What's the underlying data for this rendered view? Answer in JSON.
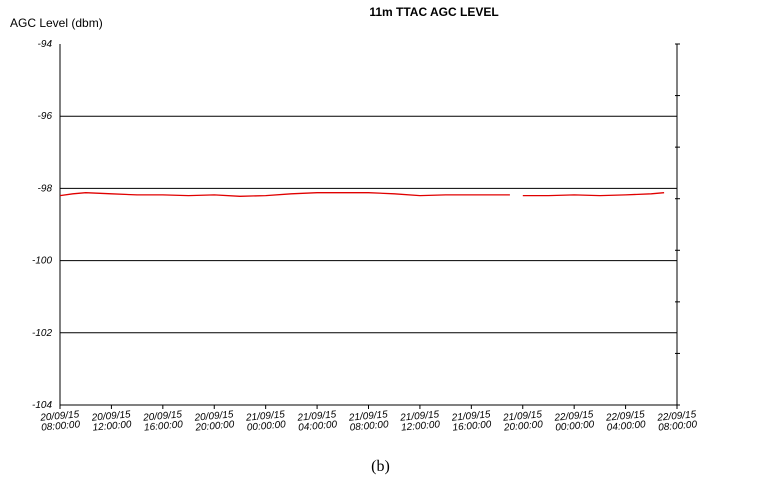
{
  "chart_data": {
    "type": "line",
    "title": "11m TTAC AGC LEVEL",
    "ylabel": "AGC Level (dbm)",
    "xlabel": "",
    "ylim": [
      -104,
      -94
    ],
    "yticks": [
      -94,
      -96,
      -98,
      -100,
      -102,
      -104
    ],
    "grid": "horizontal",
    "x_ticks": [
      "20/09/15 08:00:00",
      "20/09/15 12:00:00",
      "20/09/15 16:00:00",
      "20/09/15 20:00:00",
      "21/09/15 00:00:00",
      "21/09/15 04:00:00",
      "21/09/15 08:00:00",
      "21/09/15 12:00:00",
      "21/09/15 16:00:00",
      "21/09/15 20:00:00",
      "22/09/15 00:00:00",
      "22/09/15 04:00:00",
      "22/09/15 08:00:00"
    ],
    "series": [
      {
        "color": "#e00000",
        "segments": [
          {
            "x": [
              "20/09/15 08:00",
              "20/09/15 09:00",
              "20/09/15 10:00",
              "20/09/15 12:00",
              "20/09/15 14:00",
              "20/09/15 16:00",
              "20/09/15 18:00",
              "20/09/15 20:00",
              "20/09/15 22:00",
              "21/09/15 00:00",
              "21/09/15 02:00",
              "21/09/15 04:00",
              "21/09/15 06:00",
              "21/09/15 08:00",
              "21/09/15 10:00",
              "21/09/15 12:00",
              "21/09/15 14:00",
              "21/09/15 16:00",
              "21/09/15 18:00",
              "21/09/15 19:00"
            ],
            "y": [
              -98.2,
              -98.15,
              -98.12,
              -98.15,
              -98.18,
              -98.18,
              -98.2,
              -98.18,
              -98.22,
              -98.2,
              -98.15,
              -98.12,
              -98.12,
              -98.12,
              -98.15,
              -98.2,
              -98.18,
              -98.18,
              -98.18,
              -98.18
            ]
          },
          {
            "x": [
              "21/09/15 20:00",
              "21/09/15 22:00",
              "22/09/15 00:00",
              "22/09/15 02:00",
              "22/09/15 04:00",
              "22/09/15 06:00",
              "22/09/15 07:00"
            ],
            "y": [
              -98.2,
              -98.2,
              -98.18,
              -98.2,
              -98.18,
              -98.15,
              -98.12
            ]
          }
        ]
      }
    ]
  },
  "caption": "(b)"
}
